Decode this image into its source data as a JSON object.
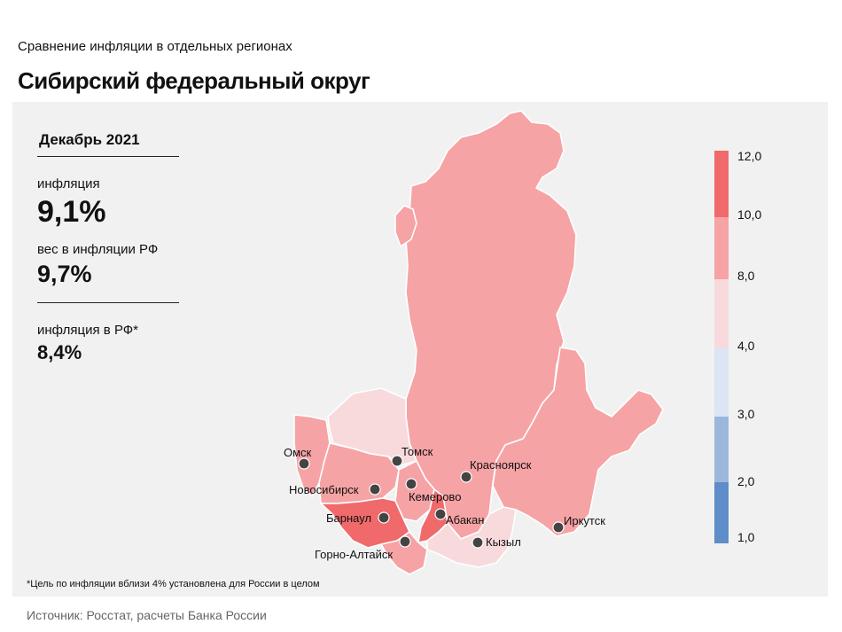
{
  "header": {
    "subtitle": "Сравнение  инфляции  в отдельных  регионах",
    "title": "Сибирский федеральный округ"
  },
  "sidebar": {
    "date": "Декабрь 2021",
    "inflation_label": "инфляция",
    "inflation_value": "9,1%",
    "weight_label": "вес в инфляции  РФ",
    "weight_value": "9,7%",
    "rf_label": "инфляция  в РФ*",
    "rf_value": "8,4%"
  },
  "legend": {
    "ticks": [
      "12,0",
      "10,0",
      "8,0",
      "4,0",
      "3,0",
      "2,0",
      "1,0"
    ],
    "bins": [
      {
        "from": 10,
        "to": 12,
        "color": "#f06a6c"
      },
      {
        "from": 8,
        "to": 10,
        "color": "#f6a3a5"
      },
      {
        "from": 4,
        "to": 8,
        "color": "#f8dadd"
      },
      {
        "from": 3,
        "to": 4,
        "color": "#dce5f3"
      },
      {
        "from": 2,
        "to": 3,
        "color": "#9bb7db"
      },
      {
        "from": 1,
        "to": 2,
        "color": "#5e8dc8"
      }
    ]
  },
  "cities": [
    {
      "name": "Омск"
    },
    {
      "name": "Томск"
    },
    {
      "name": "Красноярск"
    },
    {
      "name": "Новосибирск"
    },
    {
      "name": "Кемерово"
    },
    {
      "name": "Абакан"
    },
    {
      "name": "Барнаул"
    },
    {
      "name": "Иркутск"
    },
    {
      "name": "Горно-Алтайск"
    },
    {
      "name": "Кызыл"
    }
  ],
  "colors": {
    "high": "#f06a6c",
    "medium": "#f6a3a5",
    "low": "#f8dadd",
    "border": "#ffffff",
    "panel": "#f1f1f1",
    "dot": "#444444"
  },
  "footer": {
    "note": "*Цель по инфляции вблизи 4% установлена для России в целом",
    "source": "Источник: Росстат, расчеты Банка России"
  }
}
